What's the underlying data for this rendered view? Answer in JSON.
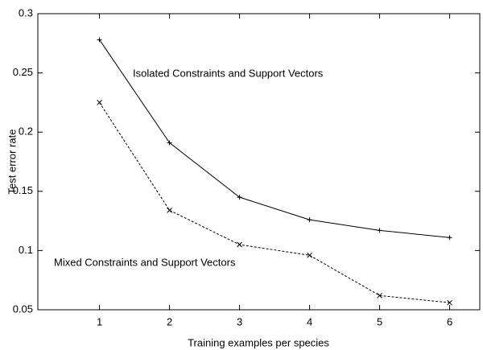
{
  "chart_data": {
    "type": "line",
    "xlabel": "Training examples per species",
    "ylabel": "Test error rate",
    "x": [
      1,
      2,
      3,
      4,
      5,
      6
    ],
    "series": [
      {
        "name": "Isolated Constraints and Support Vectors",
        "color": "#000000",
        "dash": false,
        "marker": "plus",
        "values": [
          0.278,
          0.191,
          0.145,
          0.126,
          0.117,
          0.111
        ]
      },
      {
        "name": "Mixed Constraints and Support Vectors",
        "color": "#000000",
        "dash": true,
        "marker": "cross",
        "values": [
          0.225,
          0.134,
          0.105,
          0.096,
          0.062,
          0.056
        ]
      }
    ],
    "xlim": [
      0.12,
      6.43
    ],
    "xticks": [
      1,
      2,
      3,
      4,
      5,
      6
    ],
    "ylim": [
      0.05,
      0.3
    ],
    "yticks": [
      0.05,
      0.1,
      0.15,
      0.2,
      0.25,
      0.3
    ],
    "grid": false
  }
}
